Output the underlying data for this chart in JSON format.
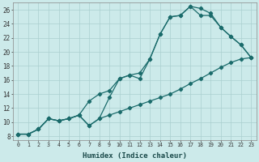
{
  "xlabel": "Humidex (Indice chaleur)",
  "bg_color": "#cceaea",
  "line_color": "#1a6b6b",
  "grid_color": "#aacfcf",
  "xlim": [
    -0.5,
    23.5
  ],
  "ylim": [
    7.5,
    27
  ],
  "xticks": [
    0,
    1,
    2,
    3,
    4,
    5,
    6,
    7,
    8,
    9,
    10,
    11,
    12,
    13,
    14,
    15,
    16,
    17,
    18,
    19,
    20,
    21,
    22,
    23
  ],
  "yticks": [
    8,
    10,
    12,
    14,
    16,
    18,
    20,
    22,
    24,
    26
  ],
  "line1_x": [
    0,
    1,
    2,
    3,
    4,
    5,
    6,
    7,
    8,
    9,
    10,
    11,
    12,
    13,
    14,
    15,
    16,
    17,
    18,
    19,
    20,
    21,
    22,
    23
  ],
  "line1_y": [
    8.3,
    8.3,
    9.0,
    10.5,
    10.2,
    10.5,
    11.0,
    9.5,
    10.5,
    13.5,
    16.2,
    16.7,
    16.2,
    19.0,
    22.5,
    25.0,
    25.2,
    26.5,
    25.2,
    25.2,
    23.5,
    22.2,
    21.0,
    19.2
  ],
  "line2_x": [
    0,
    1,
    2,
    3,
    4,
    5,
    6,
    7,
    8,
    9,
    10,
    11,
    12,
    13,
    14,
    15,
    16,
    17,
    18,
    19,
    20,
    21,
    22,
    23
  ],
  "line2_y": [
    8.3,
    8.3,
    9.0,
    10.5,
    10.2,
    10.5,
    11.0,
    13.0,
    14.0,
    14.5,
    16.2,
    16.7,
    17.0,
    19.0,
    22.5,
    25.0,
    25.2,
    26.5,
    26.2,
    25.5,
    23.5,
    22.2,
    21.0,
    19.2
  ],
  "line3_x": [
    0,
    1,
    2,
    3,
    4,
    5,
    6,
    7,
    8,
    9,
    10,
    11,
    12,
    13,
    14,
    15,
    16,
    17,
    18,
    19,
    20,
    21,
    22,
    23
  ],
  "line3_y": [
    8.3,
    8.3,
    9.0,
    10.5,
    10.2,
    10.5,
    11.0,
    9.5,
    10.5,
    11.0,
    11.5,
    12.0,
    12.5,
    13.0,
    13.5,
    14.0,
    14.7,
    15.5,
    16.2,
    17.0,
    17.8,
    18.5,
    19.0,
    19.2
  ]
}
